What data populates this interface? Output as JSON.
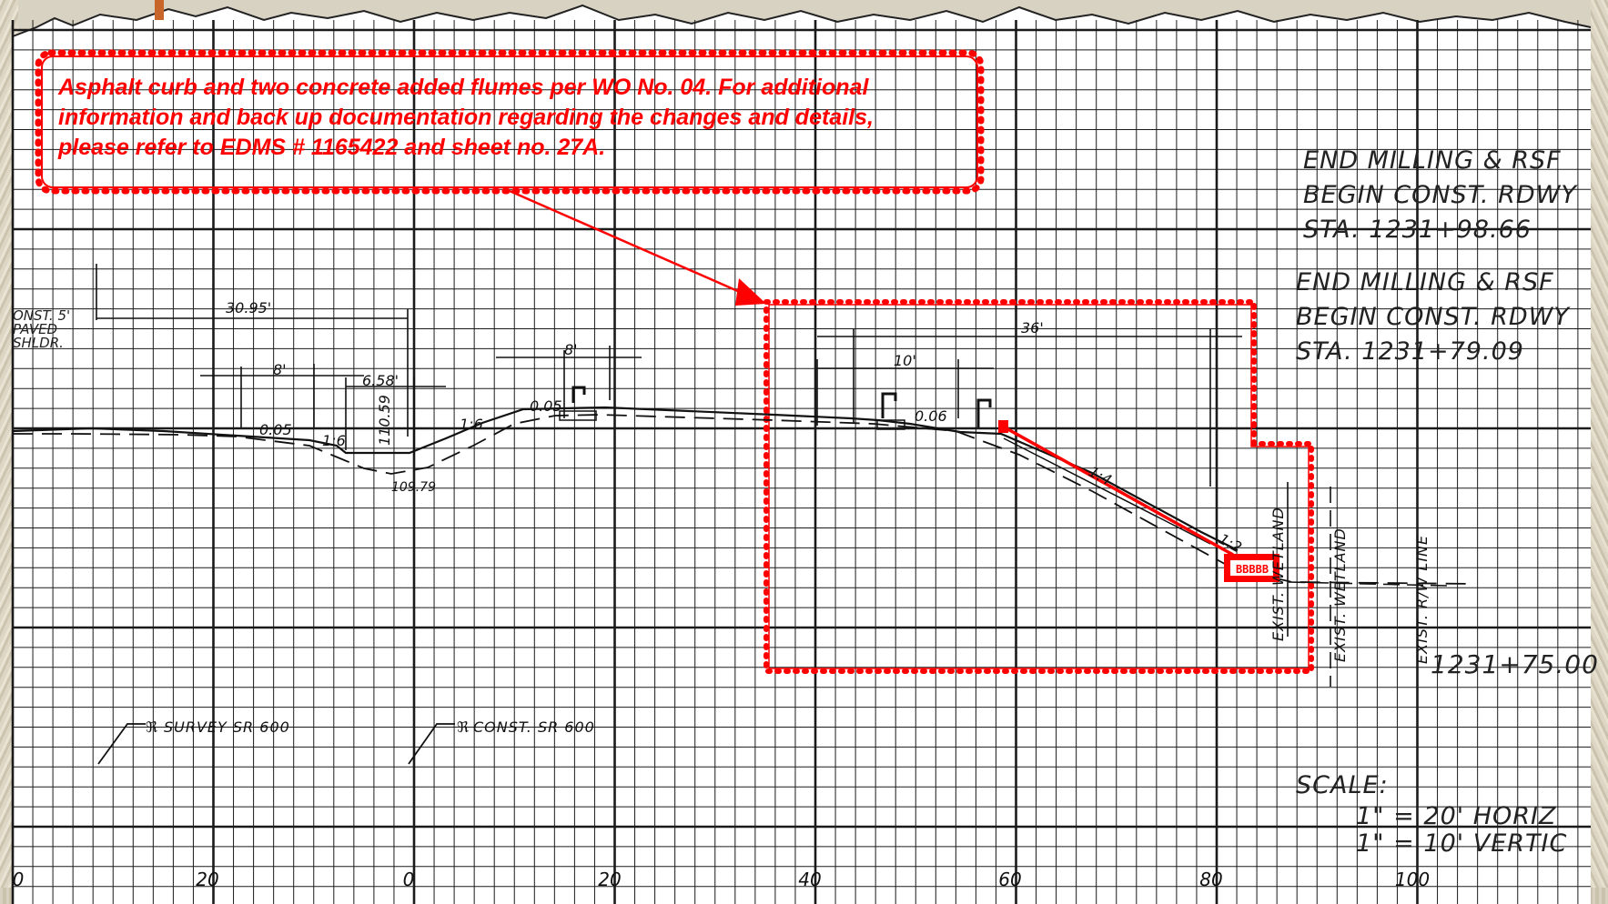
{
  "revision_note": {
    "lines": [
      "Asphalt curb and two concrete added flumes per WO No. 04. For additional",
      "information and back up documentation regarding the changes and details,",
      "please refer to EDMS # 1165422 and sheet no. 27A."
    ],
    "color": "#ff0000"
  },
  "station_labels_upper": [
    "END MILLING & RSF",
    "BEGIN CONST. RDWY",
    "STA. 1231+98.66"
  ],
  "station_labels_lower": [
    "END MILLING & RSF",
    "BEGIN CONST. RDWY",
    "STA. 1231+79.09"
  ],
  "shoulder_label": [
    "ONST. 5'",
    "PAVED",
    "SHLDR."
  ],
  "dimensions": {
    "d1": "30.95'",
    "d2": "8'",
    "d3": "6.58'",
    "d4": "8'",
    "d5": "36'",
    "d6": "10'",
    "slope1": "0.05",
    "slope2": "1:6",
    "slope3": "1:6",
    "slope4": "0.05",
    "slope5": "0.06",
    "slope6": "1:4",
    "slope7": "1:2",
    "elev1": "110.59",
    "elev2": "109.79"
  },
  "vertical_labels": [
    "EXIST. WETLAND",
    "EXIST. WETLAND",
    "EXIST. R/W LINE"
  ],
  "station_bottom": "1231+75.00",
  "centerline_labels": [
    "SURVEY SR 600",
    "CONST. SR 600"
  ],
  "scale": {
    "label": "SCALE:",
    "horizontal": "1\" = 20' HORIZ",
    "vertical": "1\" = 10' VERTIC"
  },
  "x_ticks": [
    "0",
    "20",
    "0",
    "20",
    "40",
    "60",
    "80",
    "100"
  ],
  "flume_label": "BBBBB"
}
